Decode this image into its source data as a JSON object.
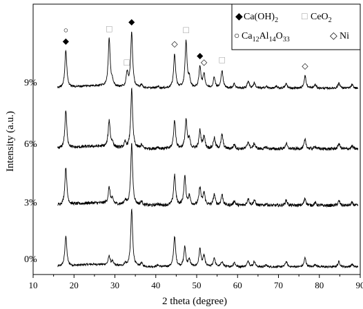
{
  "chart_data": {
    "type": "line",
    "xlabel": "2 theta (degree)",
    "ylabel": "Intensity (a.u.)",
    "xlim": [
      10,
      90
    ],
    "xticks": [
      10,
      20,
      30,
      40,
      50,
      60,
      70,
      80,
      90
    ],
    "y_ticks_shown": false,
    "grid": false,
    "series": [
      {
        "name": "0%",
        "offset": 0,
        "baseline_noise": 0.8,
        "peaks": [
          [
            18.0,
            17
          ],
          [
            28.6,
            5
          ],
          [
            29.4,
            2
          ],
          [
            32.5,
            1.5
          ],
          [
            34.1,
            32
          ],
          [
            36.5,
            2
          ],
          [
            40.5,
            1
          ],
          [
            44.6,
            17
          ],
          [
            47.1,
            11
          ],
          [
            48.2,
            4
          ],
          [
            50.8,
            10
          ],
          [
            51.8,
            6
          ],
          [
            54.3,
            5
          ],
          [
            56.2,
            3
          ],
          [
            59.2,
            2.5
          ],
          [
            62.6,
            3.5
          ],
          [
            64.1,
            3
          ],
          [
            67.0,
            1
          ],
          [
            71.9,
            3
          ],
          [
            76.5,
            5
          ],
          [
            79.0,
            1.5
          ],
          [
            84.8,
            3
          ],
          [
            88.0,
            1.5
          ]
        ]
      },
      {
        "name": "3%",
        "offset": 1,
        "baseline_noise": 1.2,
        "peaks": [
          [
            18.0,
            21
          ],
          [
            28.6,
            9
          ],
          [
            29.4,
            2.5
          ],
          [
            32.5,
            2.5
          ],
          [
            34.1,
            34
          ],
          [
            36.5,
            2
          ],
          [
            40.5,
            1
          ],
          [
            44.6,
            17
          ],
          [
            47.1,
            16
          ],
          [
            48.2,
            5
          ],
          [
            50.8,
            10
          ],
          [
            51.8,
            7
          ],
          [
            54.3,
            6
          ],
          [
            56.2,
            6
          ],
          [
            59.2,
            2.5
          ],
          [
            62.6,
            4
          ],
          [
            64.1,
            3
          ],
          [
            67.0,
            1
          ],
          [
            71.9,
            3
          ],
          [
            76.5,
            4
          ],
          [
            79.0,
            1.5
          ],
          [
            84.8,
            2.5
          ],
          [
            88.0,
            1.5
          ]
        ]
      },
      {
        "name": "6%",
        "offset": 2,
        "baseline_noise": 1.2,
        "peaks": [
          [
            18.0,
            21
          ],
          [
            28.6,
            15
          ],
          [
            29.4,
            2.5
          ],
          [
            32.5,
            3
          ],
          [
            34.1,
            33
          ],
          [
            36.5,
            2
          ],
          [
            40.5,
            1
          ],
          [
            44.6,
            16
          ],
          [
            47.4,
            16
          ],
          [
            48.2,
            5
          ],
          [
            50.8,
            10
          ],
          [
            51.8,
            7
          ],
          [
            54.3,
            6
          ],
          [
            56.2,
            8
          ],
          [
            59.2,
            2.5
          ],
          [
            62.6,
            4
          ],
          [
            64.1,
            3
          ],
          [
            67.0,
            1
          ],
          [
            71.9,
            3
          ],
          [
            76.5,
            5
          ],
          [
            79.0,
            1.5
          ],
          [
            84.8,
            3
          ],
          [
            88.0,
            1.5
          ]
        ]
      },
      {
        "name": "9%",
        "offset": 3,
        "baseline_noise": 0.8,
        "peaks": [
          [
            18.0,
            21
          ],
          [
            28.6,
            27
          ],
          [
            29.4,
            2.5
          ],
          [
            33.0,
            8
          ],
          [
            34.1,
            31
          ],
          [
            36.5,
            2
          ],
          [
            40.5,
            1
          ],
          [
            44.6,
            19
          ],
          [
            47.4,
            26
          ],
          [
            48.2,
            5
          ],
          [
            50.8,
            12
          ],
          [
            51.8,
            8
          ],
          [
            54.3,
            6
          ],
          [
            56.2,
            10
          ],
          [
            59.2,
            2.5
          ],
          [
            62.6,
            4
          ],
          [
            64.1,
            3
          ],
          [
            67.0,
            1
          ],
          [
            69.5,
            1
          ],
          [
            71.9,
            2.5
          ],
          [
            76.5,
            7
          ],
          [
            79.0,
            2
          ],
          [
            84.8,
            3
          ],
          [
            88.0,
            2
          ]
        ]
      }
    ],
    "legend": {
      "position": "top-right",
      "entries": [
        {
          "symbol": "◆",
          "label": "Ca(OH)",
          "sub": "2"
        },
        {
          "symbol": "□",
          "label": "CeO",
          "sub": "2"
        },
        {
          "symbol": "○",
          "label": "Ca12Al14O33"
        },
        {
          "symbol": "◇",
          "label": "Ni"
        }
      ]
    },
    "annotations": [
      {
        "x": 18.0,
        "symbols": [
          "○",
          "◆"
        ]
      },
      {
        "x": 28.6,
        "symbols": [
          "□"
        ]
      },
      {
        "x": 32.9,
        "symbols": [
          "□"
        ]
      },
      {
        "x": 34.1,
        "symbols": [
          "◆"
        ]
      },
      {
        "x": 44.6,
        "symbols": [
          "◇"
        ]
      },
      {
        "x": 47.4,
        "symbols": [
          "□"
        ]
      },
      {
        "x": 50.8,
        "symbols": [
          "◆"
        ]
      },
      {
        "x": 51.8,
        "symbols": [
          "◇"
        ]
      },
      {
        "x": 56.2,
        "symbols": [
          "□"
        ]
      },
      {
        "x": 76.5,
        "symbols": [
          "◇"
        ]
      }
    ]
  },
  "legend_labels": {
    "caoh2_main": "Ca(OH)",
    "caoh2_sub": "2",
    "ceo2_main": "CeO",
    "ceo2_sub": "2",
    "mayenite_ca": "Ca",
    "mayenite_ca_sub": "12",
    "mayenite_al": "Al",
    "mayenite_al_sub": "14",
    "mayenite_o": "O",
    "mayenite_o_sub": "33",
    "ni": "Ni"
  }
}
